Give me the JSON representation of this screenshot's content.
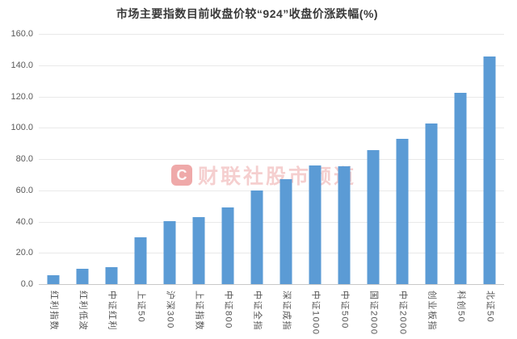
{
  "watermark": {
    "logo_letter": "C",
    "text": "财联社股市频道",
    "logo_color": "rgba(224,84,84,0.50)",
    "text_color": "rgba(224,110,110,0.33)"
  },
  "chart_data": {
    "type": "bar",
    "title": "市场主要指数目前收盘价较“924”收盘价涨跌幅(%)",
    "categories": [
      "红利指数",
      "红利低波",
      "中证红利",
      "上证50",
      "沪深300",
      "上证指数",
      "中证800",
      "中证全指",
      "深证成指",
      "中证1000",
      "中证500",
      "国证2000",
      "中证2000",
      "创业板指",
      "科创50",
      "北证50"
    ],
    "values": [
      5.7,
      9.6,
      11.0,
      30.0,
      40.5,
      43.0,
      48.9,
      59.8,
      67.3,
      75.9,
      75.4,
      85.8,
      92.7,
      102.6,
      122.5,
      145.3
    ],
    "xlabel": "",
    "ylabel": "",
    "ylim": [
      0,
      160
    ],
    "ytick_step": 20,
    "ytick_labels": [
      "0.0",
      "20.0",
      "40.0",
      "60.0",
      "80.0",
      "100.0",
      "120.0",
      "140.0",
      "160.0"
    ],
    "grid": true,
    "legend": "none",
    "bar_color": "#5b9bd5",
    "gridline_color": "#e9e9e9",
    "axis_line_color": "#c9c9c9",
    "tick_label_color": "#595959",
    "title_color": "#3a3a3a"
  }
}
